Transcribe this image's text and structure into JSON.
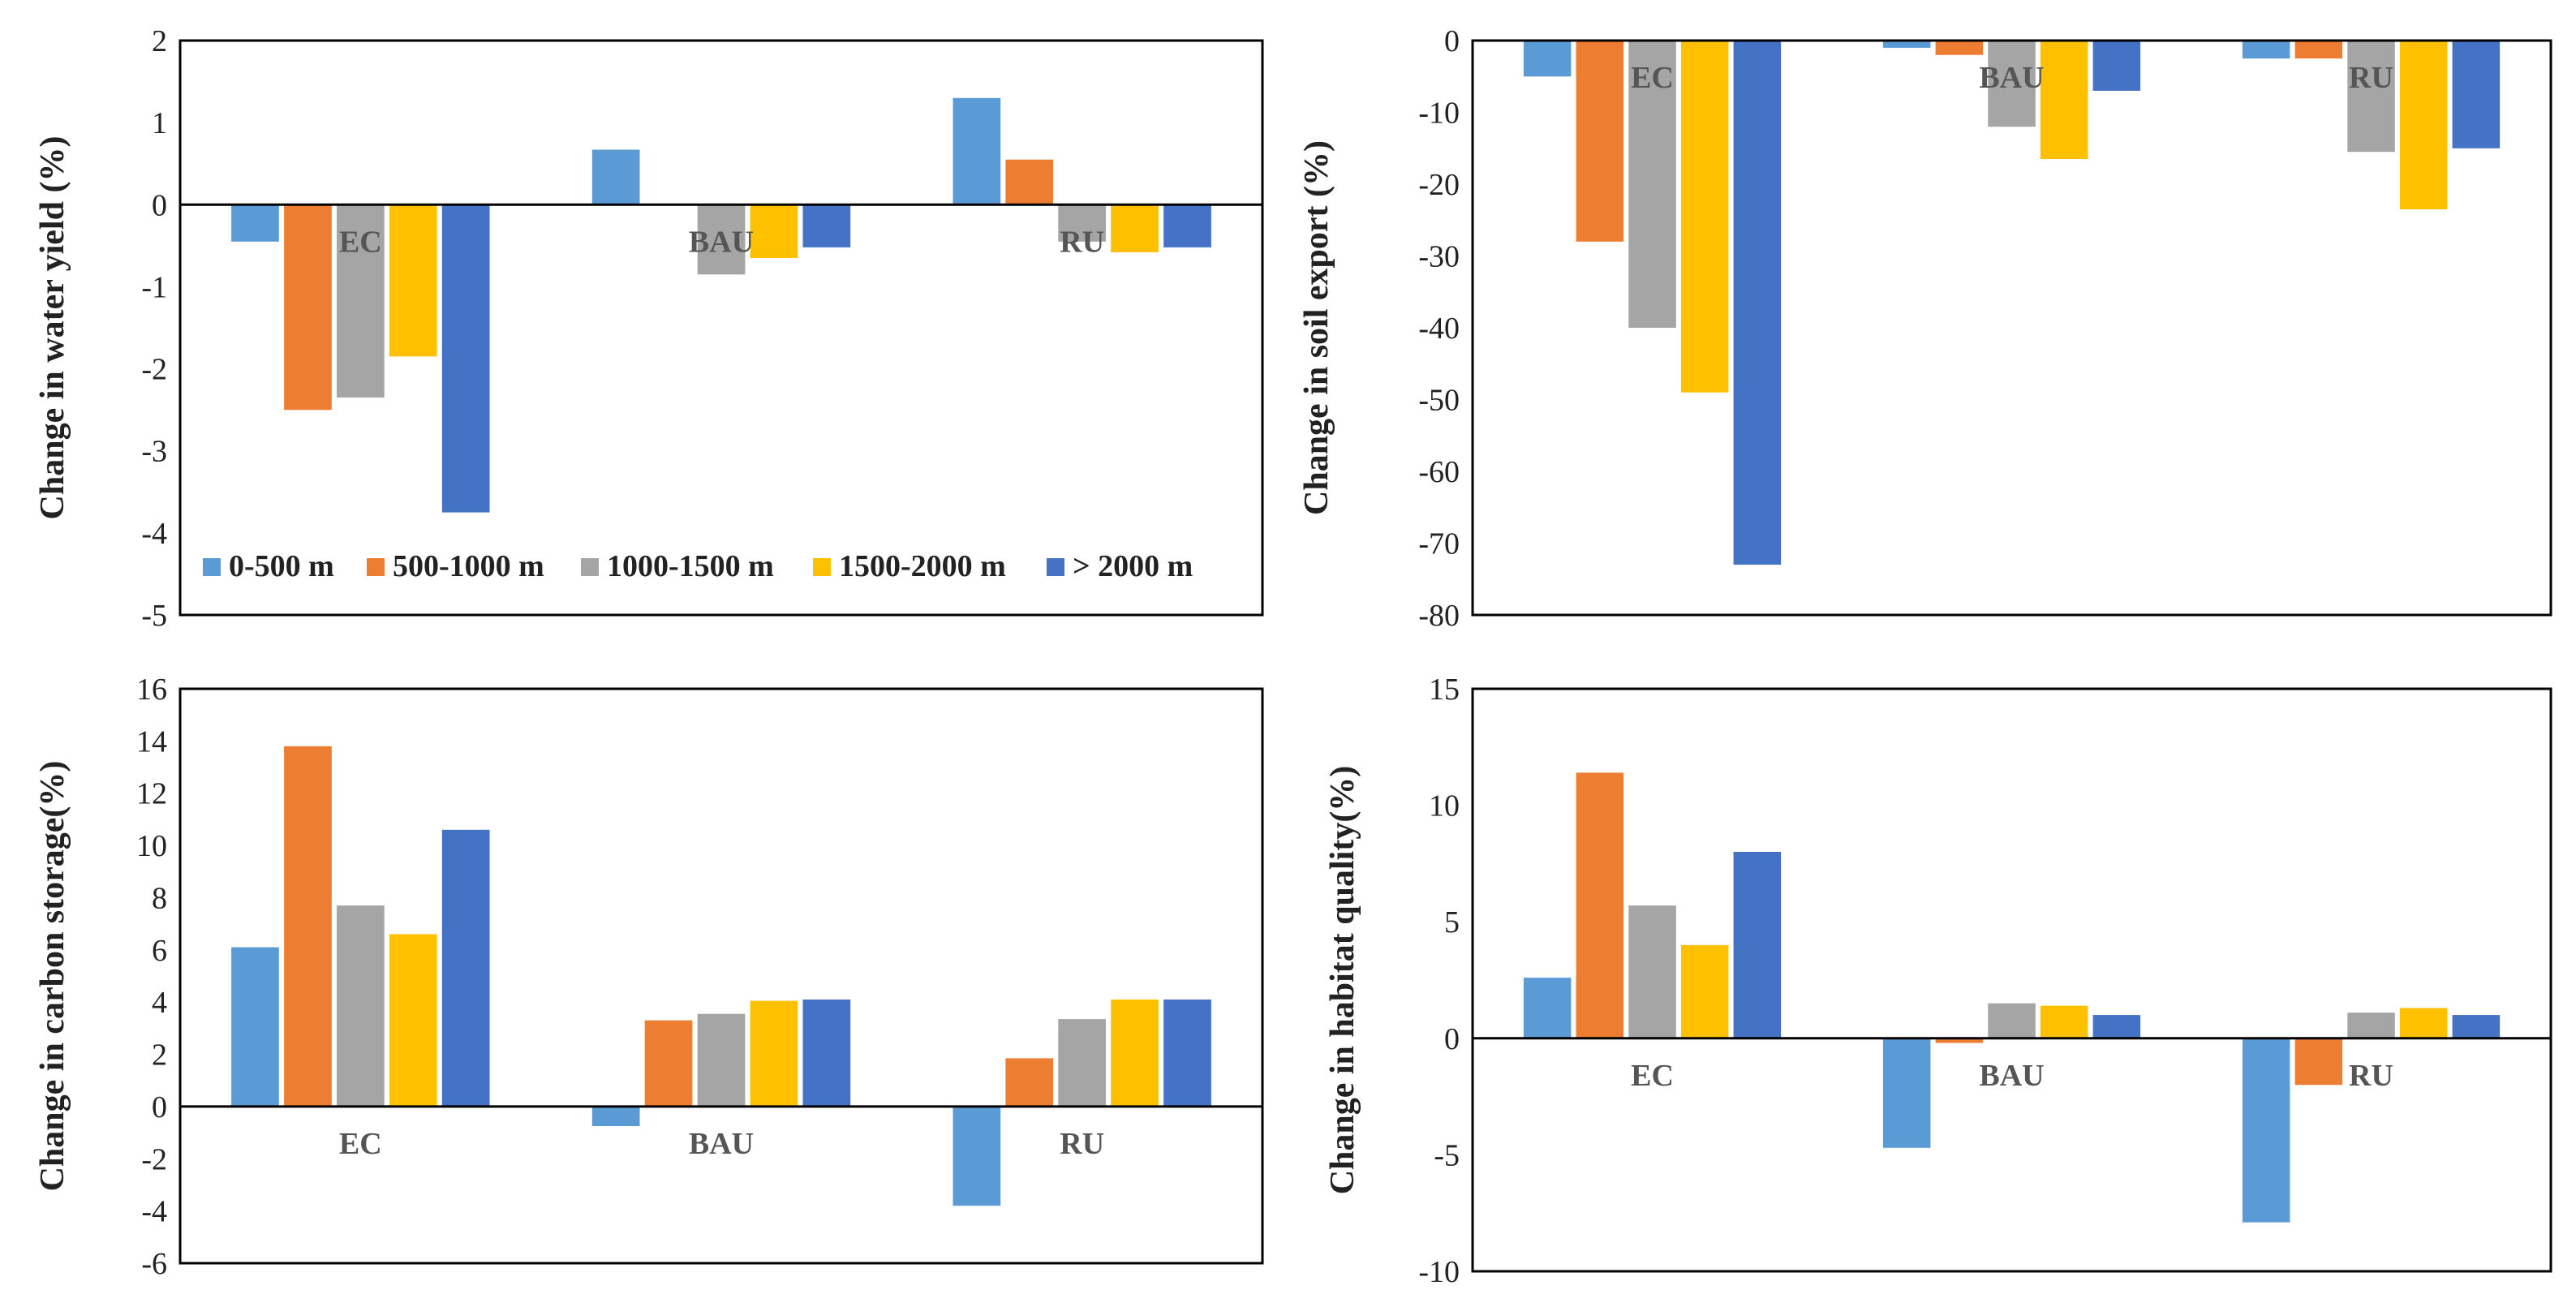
{
  "colors": {
    "s0": "#5B9BD5",
    "s1": "#ED7D31",
    "s2": "#A5A5A5",
    "s3": "#FFC000",
    "s4": "#4472C4"
  },
  "legend": [
    "0-500 m",
    "500-1000 m",
    "1000-1500 m",
    "1500-2000 m",
    "> 2000 m"
  ],
  "chart_data": [
    {
      "type": "bar",
      "id": "water-yield",
      "ylabel": "Change in water yield (%)",
      "categories": [
        "EC",
        "BAU",
        "RU"
      ],
      "ylim": [
        -5,
        2
      ],
      "yticks": [
        2,
        1,
        0,
        -1,
        -2,
        -3,
        -4,
        -5
      ],
      "cat_labels_at_zero": true,
      "series": [
        {
          "name": "0-500 m",
          "values": [
            -0.45,
            0.67,
            1.3
          ]
        },
        {
          "name": "500-1000 m",
          "values": [
            -2.5,
            0.0,
            0.55
          ]
        },
        {
          "name": "1000-1500 m",
          "values": [
            -2.35,
            -0.85,
            -0.45
          ]
        },
        {
          "name": "1500-2000 m",
          "values": [
            -1.85,
            -0.65,
            -0.58
          ]
        },
        {
          "name": "> 2000 m",
          "values": [
            -3.75,
            -0.52,
            -0.52
          ]
        }
      ]
    },
    {
      "type": "bar",
      "id": "soil-export",
      "ylabel": "Change in soil export (%)",
      "categories": [
        "EC",
        "BAU",
        "RU"
      ],
      "ylim": [
        -80,
        0
      ],
      "yticks": [
        0,
        -10,
        -20,
        -30,
        -40,
        -50,
        -60,
        -70,
        -80
      ],
      "cat_labels_at_zero": true,
      "series": [
        {
          "name": "0-500 m",
          "values": [
            -5,
            -1,
            -2.5
          ]
        },
        {
          "name": "500-1000 m",
          "values": [
            -28,
            -2,
            -2.5
          ]
        },
        {
          "name": "1000-1500 m",
          "values": [
            -40,
            -12,
            -15.5
          ]
        },
        {
          "name": "1500-2000 m",
          "values": [
            -49,
            -16.5,
            -23.5
          ]
        },
        {
          "name": "> 2000 m",
          "values": [
            -73,
            -7,
            -15
          ]
        }
      ]
    },
    {
      "type": "bar",
      "id": "carbon-storage",
      "ylabel": "Change in carbon storage(%)",
      "categories": [
        "EC",
        "BAU",
        "RU"
      ],
      "ylim": [
        -6,
        16
      ],
      "yticks": [
        16,
        14,
        12,
        10,
        8,
        6,
        4,
        2,
        0,
        -2,
        -4,
        -6
      ],
      "cat_labels_at_zero": true,
      "series": [
        {
          "name": "0-500 m",
          "values": [
            6.1,
            -0.75,
            -3.8
          ]
        },
        {
          "name": "500-1000 m",
          "values": [
            13.8,
            3.3,
            1.85
          ]
        },
        {
          "name": "1000-1500 m",
          "values": [
            7.7,
            3.55,
            3.35
          ]
        },
        {
          "name": "1500-2000 m",
          "values": [
            6.6,
            4.05,
            4.1
          ]
        },
        {
          "name": "> 2000 m",
          "values": [
            10.6,
            4.1,
            4.1
          ]
        }
      ]
    },
    {
      "type": "bar",
      "id": "habitat-quality",
      "ylabel": "Change in habitat quality(%)",
      "categories": [
        "EC",
        "BAU",
        "RU"
      ],
      "ylim": [
        -10,
        15
      ],
      "yticks": [
        15,
        10,
        5,
        0,
        -5,
        -10
      ],
      "cat_labels_at_zero": true,
      "series": [
        {
          "name": "0-500 m",
          "values": [
            2.6,
            -4.7,
            -7.9
          ]
        },
        {
          "name": "500-1000 m",
          "values": [
            11.4,
            -0.2,
            -2.0
          ]
        },
        {
          "name": "1000-1500 m",
          "values": [
            5.7,
            1.5,
            1.1
          ]
        },
        {
          "name": "1500-2000 m",
          "values": [
            4.0,
            1.4,
            1.3
          ]
        },
        {
          "name": "> 2000 m",
          "values": [
            8.0,
            1.0,
            1.0
          ]
        }
      ]
    }
  ]
}
